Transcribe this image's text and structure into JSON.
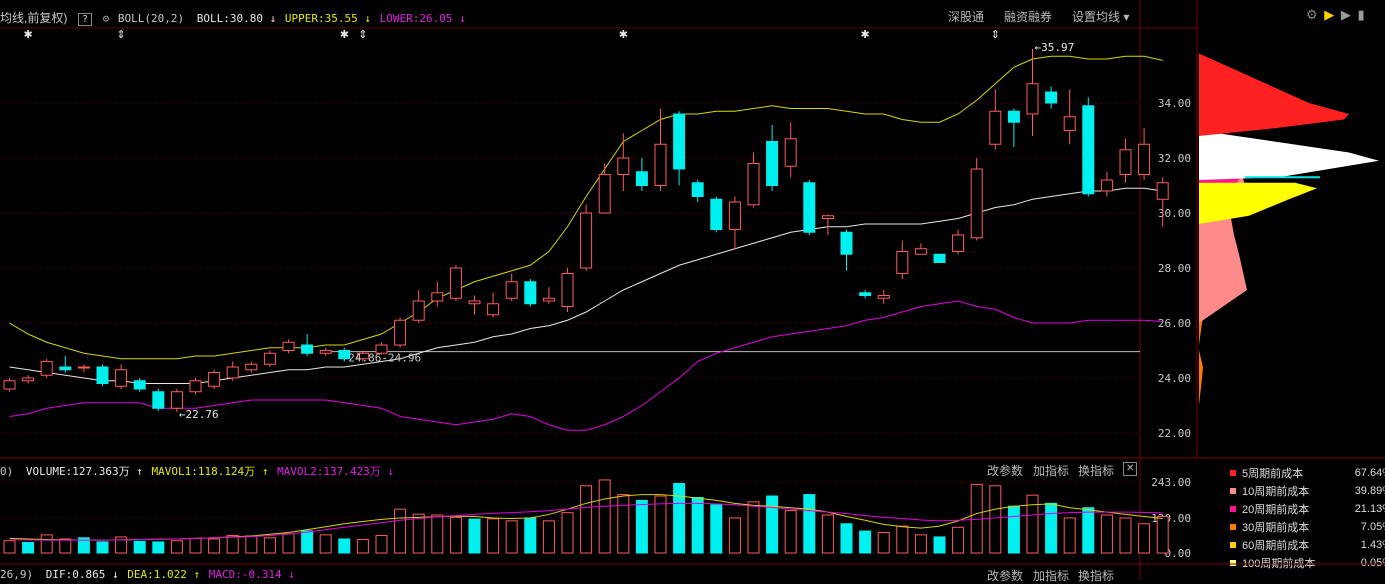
{
  "header": {
    "title": "均线,前复权)",
    "help_label": "?",
    "indicator": "BOLL(20,2)",
    "boll_label": "BOLL:30.80",
    "upper_label": "UPPER:35.55",
    "lower_label": "LOWER:26.05",
    "buttons": [
      "深股通",
      "融资融券",
      "设置均线 ▾"
    ]
  },
  "volume_header": {
    "prefix": "0)",
    "volume": "VOLUME:127.363万",
    "mavol1": "MAVOL1:118.124万",
    "mavol2": "MAVOL2:137.423万",
    "buttons": [
      "改参数",
      "加指标",
      "换指标"
    ],
    "close": "✕"
  },
  "macd_header": {
    "prefix": "26,9)",
    "dif": "DIF:0.865",
    "dea": "DEA:1.022",
    "macd": "MACD:-0.314",
    "buttons": [
      "改参数",
      "加指标",
      "换指标"
    ]
  },
  "annotations": {
    "high": "35.97",
    "low": "22.76",
    "range": "24.86-24.96"
  },
  "cost_legend": [
    {
      "name": "5周期前成本",
      "pct": "67.64%",
      "color": "#ff2020"
    },
    {
      "name": "10周期前成本",
      "pct": "39.89%",
      "color": "#ff8a8a"
    },
    {
      "name": "20周期前成本",
      "pct": "21.13%",
      "color": "#ff1493"
    },
    {
      "name": "30周期前成本",
      "pct": "7.05%",
      "color": "#ff7a00"
    },
    {
      "name": "60周期前成本",
      "pct": "1.43%",
      "color": "#ffcc00"
    },
    {
      "name": "100周期前成本",
      "pct": "0.05%",
      "color": "#ffff80"
    }
  ],
  "colors": {
    "up": "#ff5a5a",
    "down": "#00f0f0",
    "mid": "#e8e8e8",
    "upper": "#d8d800",
    "lower": "#e000e0"
  },
  "chart_data": [
    {
      "type": "candlestick",
      "title": "",
      "price_axis": {
        "ticks": [
          "34.00",
          "32.00",
          "30.00",
          "28.00",
          "26.00",
          "24.00",
          "22.00"
        ],
        "ylim": [
          21.6,
          36.6
        ]
      },
      "candles": [
        [
          23.6,
          23.9,
          23.5,
          24.0
        ],
        [
          23.9,
          24.0,
          23.8,
          24.1
        ],
        [
          24.1,
          24.6,
          24.0,
          24.7
        ],
        [
          24.4,
          24.3,
          24.2,
          24.8
        ],
        [
          24.4,
          24.4,
          24.2,
          24.5
        ],
        [
          24.4,
          23.8,
          23.7,
          24.5
        ],
        [
          23.7,
          24.3,
          23.6,
          24.5
        ],
        [
          23.9,
          23.6,
          23.5,
          24.0
        ],
        [
          23.5,
          22.9,
          22.8,
          23.6
        ],
        [
          22.9,
          23.5,
          22.76,
          23.6
        ],
        [
          23.5,
          23.9,
          23.4,
          24.0
        ],
        [
          23.7,
          24.2,
          23.6,
          24.3
        ],
        [
          24.0,
          24.4,
          23.9,
          24.6
        ],
        [
          24.3,
          24.5,
          24.2,
          24.6
        ],
        [
          24.5,
          24.9,
          24.4,
          25.0
        ],
        [
          25.0,
          25.3,
          24.9,
          25.4
        ],
        [
          25.2,
          24.9,
          24.8,
          25.6
        ],
        [
          24.9,
          25.0,
          24.8,
          25.1
        ],
        [
          25.0,
          24.7,
          24.6,
          25.1
        ],
        [
          24.7,
          24.9,
          24.6,
          25.0
        ],
        [
          24.9,
          25.2,
          24.86,
          25.3
        ],
        [
          25.2,
          26.1,
          25.1,
          26.2
        ],
        [
          26.1,
          26.8,
          26.0,
          27.2
        ],
        [
          26.8,
          27.1,
          26.6,
          27.5
        ],
        [
          26.9,
          28.0,
          26.8,
          28.1
        ],
        [
          26.7,
          26.8,
          26.3,
          27.0
        ],
        [
          26.3,
          26.7,
          26.2,
          27.1
        ],
        [
          26.9,
          27.5,
          26.8,
          27.8
        ],
        [
          27.5,
          26.7,
          26.6,
          27.6
        ],
        [
          26.8,
          26.9,
          26.7,
          27.3
        ],
        [
          26.6,
          27.8,
          26.4,
          28.0
        ],
        [
          28.0,
          30.0,
          27.9,
          30.3
        ],
        [
          30.0,
          31.4,
          30.0,
          31.8
        ],
        [
          31.4,
          32.0,
          30.8,
          32.9
        ],
        [
          31.5,
          31.0,
          30.8,
          32.0
        ],
        [
          31.0,
          32.5,
          30.8,
          33.8
        ],
        [
          33.6,
          31.6,
          31.0,
          33.7
        ],
        [
          31.1,
          30.6,
          30.4,
          31.2
        ],
        [
          30.5,
          29.4,
          29.3,
          30.6
        ],
        [
          29.4,
          30.4,
          28.7,
          30.6
        ],
        [
          30.3,
          31.8,
          30.2,
          32.2
        ],
        [
          32.6,
          31.0,
          30.8,
          33.2
        ],
        [
          31.7,
          32.7,
          31.3,
          33.3
        ],
        [
          31.1,
          29.3,
          29.2,
          31.2
        ],
        [
          29.8,
          29.9,
          29.2,
          29.95
        ],
        [
          29.3,
          28.5,
          27.9,
          29.4
        ],
        [
          27.1,
          27.0,
          26.9,
          27.2
        ],
        [
          26.9,
          27.0,
          26.7,
          27.2
        ],
        [
          27.8,
          28.6,
          27.6,
          29.0
        ],
        [
          28.5,
          28.7,
          28.5,
          28.9
        ],
        [
          28.5,
          28.2,
          28.2,
          28.5
        ],
        [
          28.6,
          29.2,
          28.5,
          29.4
        ],
        [
          29.1,
          31.6,
          29.0,
          32.0
        ],
        [
          32.5,
          33.7,
          32.3,
          34.5
        ],
        [
          33.7,
          33.3,
          32.4,
          33.8
        ],
        [
          33.6,
          34.7,
          32.8,
          35.97
        ],
        [
          34.4,
          34.0,
          33.8,
          34.6
        ],
        [
          33.0,
          33.5,
          32.5,
          34.5
        ],
        [
          33.9,
          30.7,
          30.6,
          34.2
        ],
        [
          30.8,
          31.2,
          30.6,
          31.5
        ],
        [
          31.4,
          32.3,
          31.1,
          32.7
        ],
        [
          31.4,
          32.5,
          31.2,
          33.1
        ],
        [
          30.5,
          31.1,
          29.5,
          31.3
        ]
      ],
      "boll_mid": [
        24.4,
        24.3,
        24.2,
        24.1,
        24.0,
        23.9,
        23.9,
        23.8,
        23.8,
        23.8,
        23.8,
        23.9,
        24.0,
        24.1,
        24.2,
        24.3,
        24.3,
        24.4,
        24.4,
        24.5,
        24.6,
        24.7,
        24.9,
        25.1,
        25.2,
        25.3,
        25.5,
        25.6,
        25.8,
        25.9,
        26.1,
        26.4,
        26.8,
        27.2,
        27.5,
        27.8,
        28.1,
        28.3,
        28.5,
        28.7,
        28.9,
        29.1,
        29.3,
        29.4,
        29.5,
        29.5,
        29.6,
        29.6,
        29.6,
        29.6,
        29.7,
        29.8,
        30.0,
        30.2,
        30.3,
        30.5,
        30.6,
        30.7,
        30.8,
        30.8,
        30.9,
        30.9,
        30.8
      ],
      "boll_upper": [
        26.0,
        25.6,
        25.3,
        25.1,
        24.9,
        24.8,
        24.7,
        24.7,
        24.7,
        24.7,
        24.8,
        24.8,
        24.9,
        25.0,
        25.1,
        25.1,
        25.1,
        25.2,
        25.2,
        25.4,
        25.6,
        26.0,
        26.4,
        26.9,
        27.2,
        27.5,
        27.7,
        27.9,
        28.1,
        28.6,
        29.5,
        30.6,
        31.6,
        32.6,
        33.0,
        33.4,
        33.6,
        33.6,
        33.7,
        33.7,
        33.8,
        33.9,
        33.8,
        33.8,
        33.8,
        33.7,
        33.6,
        33.6,
        33.4,
        33.3,
        33.3,
        33.6,
        34.1,
        34.7,
        35.3,
        35.6,
        35.7,
        35.7,
        35.6,
        35.6,
        35.7,
        35.7,
        35.55
      ],
      "boll_lower": [
        22.6,
        22.7,
        22.9,
        23.0,
        23.1,
        23.1,
        23.1,
        23.1,
        22.9,
        22.9,
        22.9,
        23.0,
        23.1,
        23.2,
        23.2,
        23.2,
        23.2,
        23.2,
        23.1,
        23.0,
        22.9,
        22.6,
        22.5,
        22.4,
        22.3,
        22.4,
        22.5,
        22.7,
        22.6,
        22.3,
        22.1,
        22.1,
        22.3,
        22.6,
        23.0,
        23.5,
        24.0,
        24.6,
        24.9,
        25.1,
        25.3,
        25.5,
        25.6,
        25.7,
        25.8,
        25.9,
        26.1,
        26.2,
        26.4,
        26.6,
        26.7,
        26.8,
        26.6,
        26.5,
        26.2,
        26.0,
        26.0,
        26.0,
        26.1,
        26.1,
        26.1,
        26.1,
        26.05
      ],
      "reference_line": 24.96
    },
    {
      "type": "bar",
      "title": "VOLUME",
      "y_ticks": [
        "243.00",
        "120.00",
        "0.00"
      ],
      "ylim": [
        0,
        260
      ],
      "volumes": [
        42,
        36,
        62,
        48,
        52,
        38,
        55,
        40,
        38,
        42,
        50,
        48,
        60,
        58,
        52,
        66,
        76,
        62,
        48,
        46,
        60,
        150,
        133,
        130,
        122,
        116,
        117,
        110,
        120,
        110,
        138,
        230,
        250,
        200,
        180,
        195,
        238,
        190,
        165,
        120,
        175,
        195,
        145,
        200,
        130,
        100,
        75,
        70,
        92,
        62,
        55,
        88,
        235,
        230,
        160,
        198,
        170,
        120,
        155,
        130,
        120,
        100,
        125
      ],
      "vol_up": [
        1,
        0,
        1,
        1,
        0,
        0,
        1,
        0,
        0,
        1,
        1,
        1,
        1,
        1,
        1,
        1,
        0,
        1,
        0,
        1,
        1,
        1,
        1,
        1,
        1,
        0,
        1,
        1,
        0,
        1,
        1,
        1,
        1,
        1,
        0,
        1,
        0,
        0,
        0,
        1,
        1,
        0,
        1,
        0,
        1,
        0,
        0,
        1,
        1,
        1,
        0,
        1,
        1,
        1,
        0,
        1,
        0,
        1,
        0,
        1,
        1,
        1,
        1
      ],
      "mavol1": [
        50,
        48,
        46,
        45,
        44,
        44,
        45,
        46,
        47,
        48,
        50,
        52,
        55,
        58,
        64,
        70,
        80,
        90,
        100,
        108,
        115,
        120,
        122,
        124,
        126,
        125,
        120,
        118,
        120,
        132,
        150,
        170,
        185,
        195,
        200,
        200,
        195,
        188,
        180,
        170,
        163,
        160,
        155,
        150,
        140,
        125,
        112,
        98,
        90,
        85,
        92,
        110,
        135,
        150,
        160,
        165,
        168,
        155,
        148,
        140,
        132,
        125,
        118
      ],
      "mavol2": [
        45,
        45,
        44,
        44,
        44,
        44,
        45,
        46,
        47,
        48,
        50,
        52,
        54,
        56,
        60,
        65,
        72,
        80,
        88,
        96,
        104,
        112,
        118,
        124,
        128,
        132,
        136,
        138,
        141,
        145,
        150,
        156,
        160,
        163,
        166,
        168,
        170,
        170,
        168,
        165,
        160,
        156,
        150,
        145,
        140,
        135,
        128,
        122,
        118,
        113,
        110,
        112,
        115,
        120,
        125,
        130,
        135,
        138,
        140,
        140,
        140,
        139,
        137.42
      ]
    }
  ]
}
